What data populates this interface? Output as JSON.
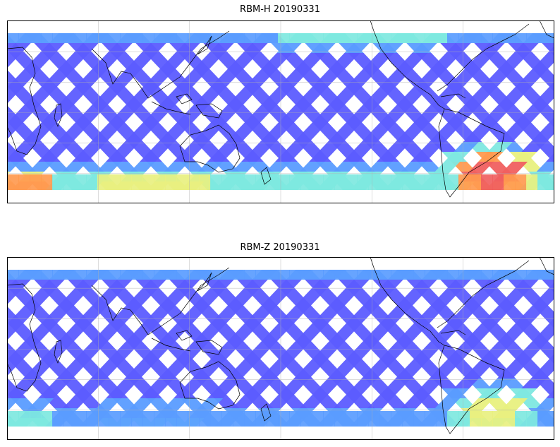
{
  "panels": [
    {
      "title": "RBM-H 20190331",
      "colormap": "jet",
      "colors": {
        "low": "#5c5cff",
        "mid_low": "#5a9cff",
        "mid": "#7ee8e0",
        "mid_high": "#e8f080",
        "high": "#ff9a50",
        "max": "#f06060"
      },
      "hotspots": [
        "south-atlantic",
        "southern-ocean-high-latitude",
        "northern-high-latitude-weak"
      ]
    },
    {
      "title": "RBM-Z 20190331",
      "colormap": "jet",
      "colors": {
        "low": "#5c5cff",
        "mid_low": "#5a9cff",
        "mid": "#7ee8e0",
        "mid_high": "#e8f080",
        "high": "#ff9a50"
      },
      "hotspots": [
        "south-atlantic-weak",
        "southern-ocean-weak"
      ]
    }
  ],
  "map": {
    "projection": "equirectangular",
    "central_longitude": 180,
    "gridlines": true,
    "coastlines": true
  }
}
